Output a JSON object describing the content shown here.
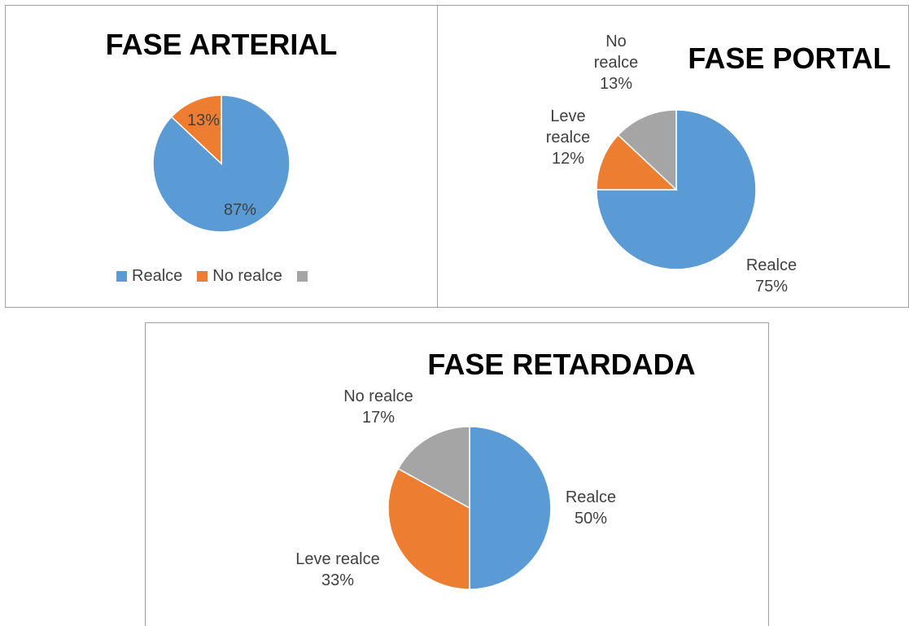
{
  "chart_data": [
    {
      "type": "pie",
      "title": "FASE ARTERIAL",
      "categories": [
        "Realce",
        "No realce",
        null
      ],
      "values": [
        87,
        13,
        0
      ],
      "value_labels": [
        "87%",
        "13%",
        null
      ],
      "colors": [
        "#5b9bd5",
        "#ed7d31",
        "#a5a5a5"
      ],
      "legend": "bottom"
    },
    {
      "type": "pie",
      "title": "FASE PORTAL",
      "categories": [
        "Realce",
        "Leve realce",
        "No realce"
      ],
      "values": [
        75,
        12,
        13
      ],
      "value_labels": [
        "75%",
        "12%",
        "13%"
      ],
      "colors": [
        "#5b9bd5",
        "#ed7d31",
        "#a5a5a5"
      ]
    },
    {
      "type": "pie",
      "title": "FASE RETARDADA",
      "categories": [
        "Realce",
        "Leve realce",
        "No realce"
      ],
      "values": [
        50,
        33,
        17
      ],
      "value_labels": [
        "50%",
        "33%",
        "17%"
      ],
      "colors": [
        "#5b9bd5",
        "#ed7d31",
        "#a5a5a5"
      ]
    }
  ]
}
